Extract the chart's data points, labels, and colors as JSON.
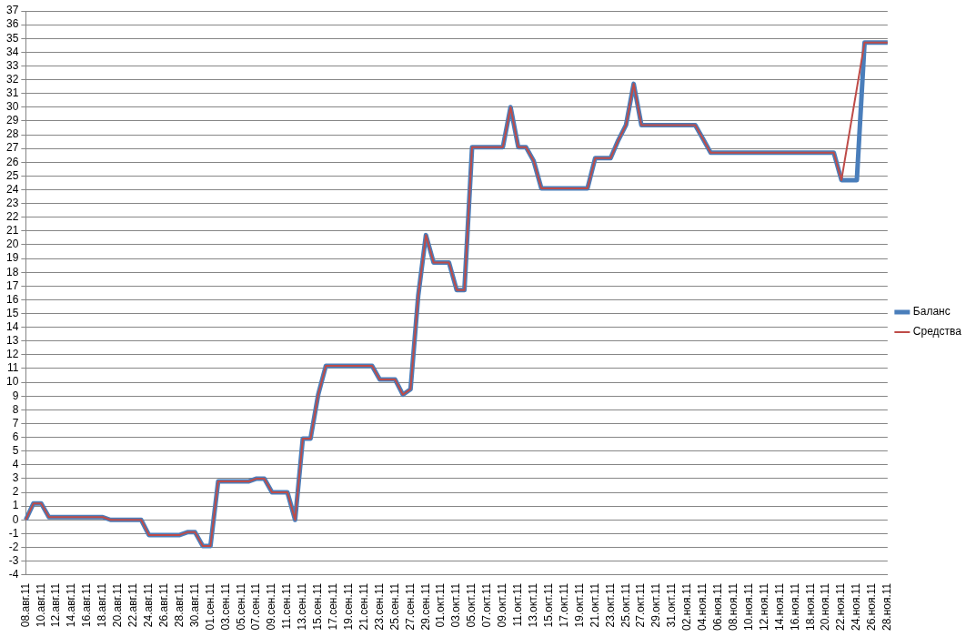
{
  "chart_data": {
    "type": "line",
    "categories": [
      "08.авг.11",
      null,
      "10.авг.11",
      null,
      "12.авг.11",
      null,
      "14.авг.11",
      null,
      "16.авг.11",
      null,
      "18.авг.11",
      null,
      "20.авг.11",
      null,
      "22.авг.11",
      null,
      "24.авг.11",
      null,
      "26.авг.11",
      null,
      "28.авг.11",
      null,
      "30.авг.11",
      null,
      "01.сен.11",
      null,
      "03.сен.11",
      null,
      "05.сен.11",
      null,
      "07.сен.11",
      null,
      "09.сен.11",
      null,
      "11.сен.11",
      null,
      "13.сен.11",
      null,
      "15.сен.11",
      null,
      "17.сен.11",
      null,
      "19.сен.11",
      null,
      "21.сен.11",
      null,
      "23.сен.11",
      null,
      "25.сен.11",
      null,
      "27.сен.11",
      null,
      "29.сен.11",
      null,
      "01.окт.11",
      null,
      "03.окт.11",
      null,
      "05.окт.11",
      null,
      "07.окт.11",
      null,
      "09.окт.11",
      null,
      "11.окт.11",
      null,
      "13.окт.11",
      null,
      "15.окт.11",
      null,
      "17.окт.11",
      null,
      "19.окт.11",
      null,
      "21.окт.11",
      null,
      "23.окт.11",
      null,
      "25.окт.11",
      null,
      "27.окт.11",
      null,
      "29.окт.11",
      null,
      "31.окт.11",
      null,
      "02.ноя.11",
      null,
      "04.ноя.11",
      null,
      "06.ноя.11",
      null,
      "08.ноя.11",
      null,
      "10.ноя.11",
      null,
      "12.ноя.11",
      null,
      "14.ноя.11",
      null,
      "16.ноя.11",
      null,
      "18.ноя.11",
      null,
      "20.ноя.11",
      null,
      "22.ноя.11",
      null,
      "24.ноя.11",
      null,
      "26.ноя.11",
      null,
      "28.ноя.11"
    ],
    "series": [
      {
        "name": "Баланс",
        "color": "#4a7ebb",
        "values": [
          0,
          1.2,
          1.2,
          0.2,
          0.2,
          0.2,
          0.2,
          0.2,
          0.2,
          0.2,
          0.2,
          0,
          0,
          0,
          0,
          0,
          -1.1,
          -1.1,
          -1.1,
          -1.1,
          -1.1,
          -0.9,
          -0.9,
          -1.9,
          -1.9,
          2.8,
          2.8,
          2.8,
          2.8,
          2.8,
          3.0,
          3.0,
          2.0,
          2.0,
          2.0,
          0,
          5.9,
          5.9,
          9.1,
          11.2,
          11.2,
          11.2,
          11.2,
          11.2,
          11.2,
          11.2,
          10.2,
          10.2,
          10.2,
          9.1,
          9.5,
          16.3,
          20.7,
          18.7,
          18.7,
          18.7,
          16.7,
          16.7,
          27.1,
          27.1,
          27.1,
          27.1,
          27.1,
          30.0,
          27.1,
          27.1,
          26.1,
          24.1,
          24.1,
          24.1,
          24.1,
          24.1,
          24.1,
          24.1,
          26.3,
          26.3,
          26.3,
          27.6,
          28.7,
          31.7,
          28.7,
          28.7,
          28.7,
          28.7,
          28.7,
          28.7,
          28.7,
          28.7,
          27.7,
          26.7,
          26.7,
          26.7,
          26.7,
          26.7,
          26.7,
          26.7,
          26.7,
          26.7,
          26.7,
          26.7,
          26.7,
          26.7,
          26.7,
          26.7,
          26.7,
          26.7,
          24.7,
          24.7,
          24.7,
          34.7,
          34.7,
          34.7,
          34.7
        ]
      },
      {
        "name": "Средства",
        "color": "#be4b48",
        "values": [
          0,
          1.2,
          1.2,
          0.2,
          0.2,
          0.2,
          0.2,
          0.2,
          0.2,
          0.2,
          0.2,
          0,
          0,
          0,
          0,
          0,
          -1.1,
          -1.1,
          -1.1,
          -1.1,
          -1.1,
          -0.9,
          -0.9,
          -1.9,
          -1.9,
          2.8,
          2.8,
          2.8,
          2.8,
          2.8,
          3.0,
          3.0,
          2.0,
          2.0,
          2.0,
          0,
          5.9,
          5.9,
          9.1,
          11.2,
          11.2,
          11.2,
          11.2,
          11.2,
          11.2,
          11.2,
          10.2,
          10.2,
          10.2,
          9.1,
          9.5,
          16.3,
          20.7,
          18.7,
          18.7,
          18.7,
          16.7,
          16.7,
          27.1,
          27.1,
          27.1,
          27.1,
          27.1,
          30.0,
          27.1,
          27.1,
          26.1,
          24.1,
          24.1,
          24.1,
          24.1,
          24.1,
          24.1,
          24.1,
          26.3,
          26.3,
          26.3,
          27.6,
          28.7,
          31.7,
          28.7,
          28.7,
          28.7,
          28.7,
          28.7,
          28.7,
          28.7,
          28.7,
          27.7,
          26.7,
          26.7,
          26.7,
          26.7,
          26.7,
          26.7,
          26.7,
          26.7,
          26.7,
          26.7,
          26.7,
          26.7,
          26.7,
          26.7,
          26.7,
          26.7,
          26.7,
          24.7,
          null,
          null,
          34.7,
          34.7,
          34.7,
          34.7
        ]
      }
    ],
    "ylim": [
      -4,
      37
    ],
    "yticks": [
      -4,
      -3,
      -2,
      -1,
      0,
      1,
      2,
      3,
      4,
      5,
      6,
      7,
      8,
      9,
      10,
      11,
      12,
      13,
      14,
      15,
      16,
      17,
      18,
      19,
      20,
      21,
      22,
      23,
      24,
      25,
      26,
      27,
      28,
      29,
      30,
      31,
      32,
      33,
      34,
      35,
      36,
      37
    ],
    "grid": "y",
    "legend": "right",
    "marker": "none",
    "line_style": "solid"
  }
}
